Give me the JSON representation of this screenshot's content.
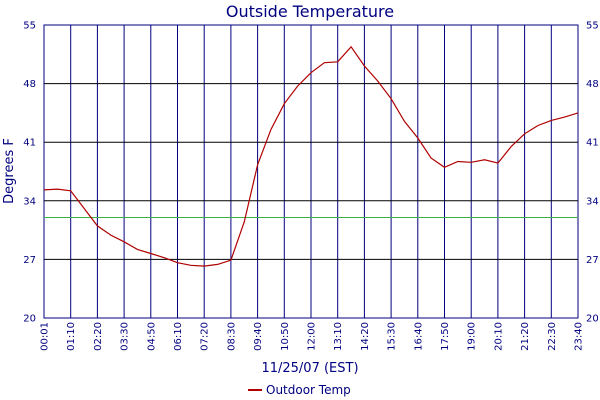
{
  "chart_data": {
    "type": "line",
    "title": "Outside Temperature",
    "xlabel": "11/25/07 (EST)",
    "ylabel": "Degrees F",
    "ylim": [
      20,
      55
    ],
    "y_ticks": [
      "20",
      "27",
      "34",
      "41",
      "48",
      "55"
    ],
    "x_ticks": [
      "00:01",
      "01:10",
      "02:20",
      "03:30",
      "04:50",
      "06:10",
      "07:20",
      "08:30",
      "09:40",
      "10:50",
      "12:00",
      "13:10",
      "14:20",
      "15:30",
      "16:40",
      "17:50",
      "19:00",
      "20:10",
      "21:20",
      "22:30",
      "23:40"
    ],
    "reference_line": 32,
    "grid": true,
    "legend_position": "bottom-center",
    "series": [
      {
        "name": "Outdoor Temp",
        "color": "#b00000",
        "x": [
          0,
          0.5,
          1,
          1.5,
          2,
          2.5,
          3,
          3.5,
          4,
          4.5,
          5,
          5.5,
          6,
          6.5,
          7,
          7.5,
          8,
          8.5,
          9,
          9.5,
          10,
          10.5,
          11,
          11.5,
          12,
          12.5,
          13,
          13.5,
          14,
          14.5,
          15,
          15.5,
          16,
          16.5,
          17,
          17.5,
          18,
          18.5,
          19,
          19.5,
          20
        ],
        "values": [
          35.3,
          35.4,
          35.2,
          33.1,
          31.0,
          29.9,
          29.1,
          28.2,
          27.7,
          27.2,
          26.6,
          26.3,
          26.2,
          26.4,
          26.9,
          31.5,
          38.3,
          42.5,
          45.6,
          47.7,
          49.3,
          50.5,
          50.6,
          52.4,
          50.1,
          48.3,
          46.2,
          43.5,
          41.5,
          39.1,
          38.0,
          38.7,
          38.6,
          38.9,
          38.5,
          40.5,
          42.0,
          43.0,
          43.6,
          44.0,
          44.5
        ]
      }
    ]
  }
}
